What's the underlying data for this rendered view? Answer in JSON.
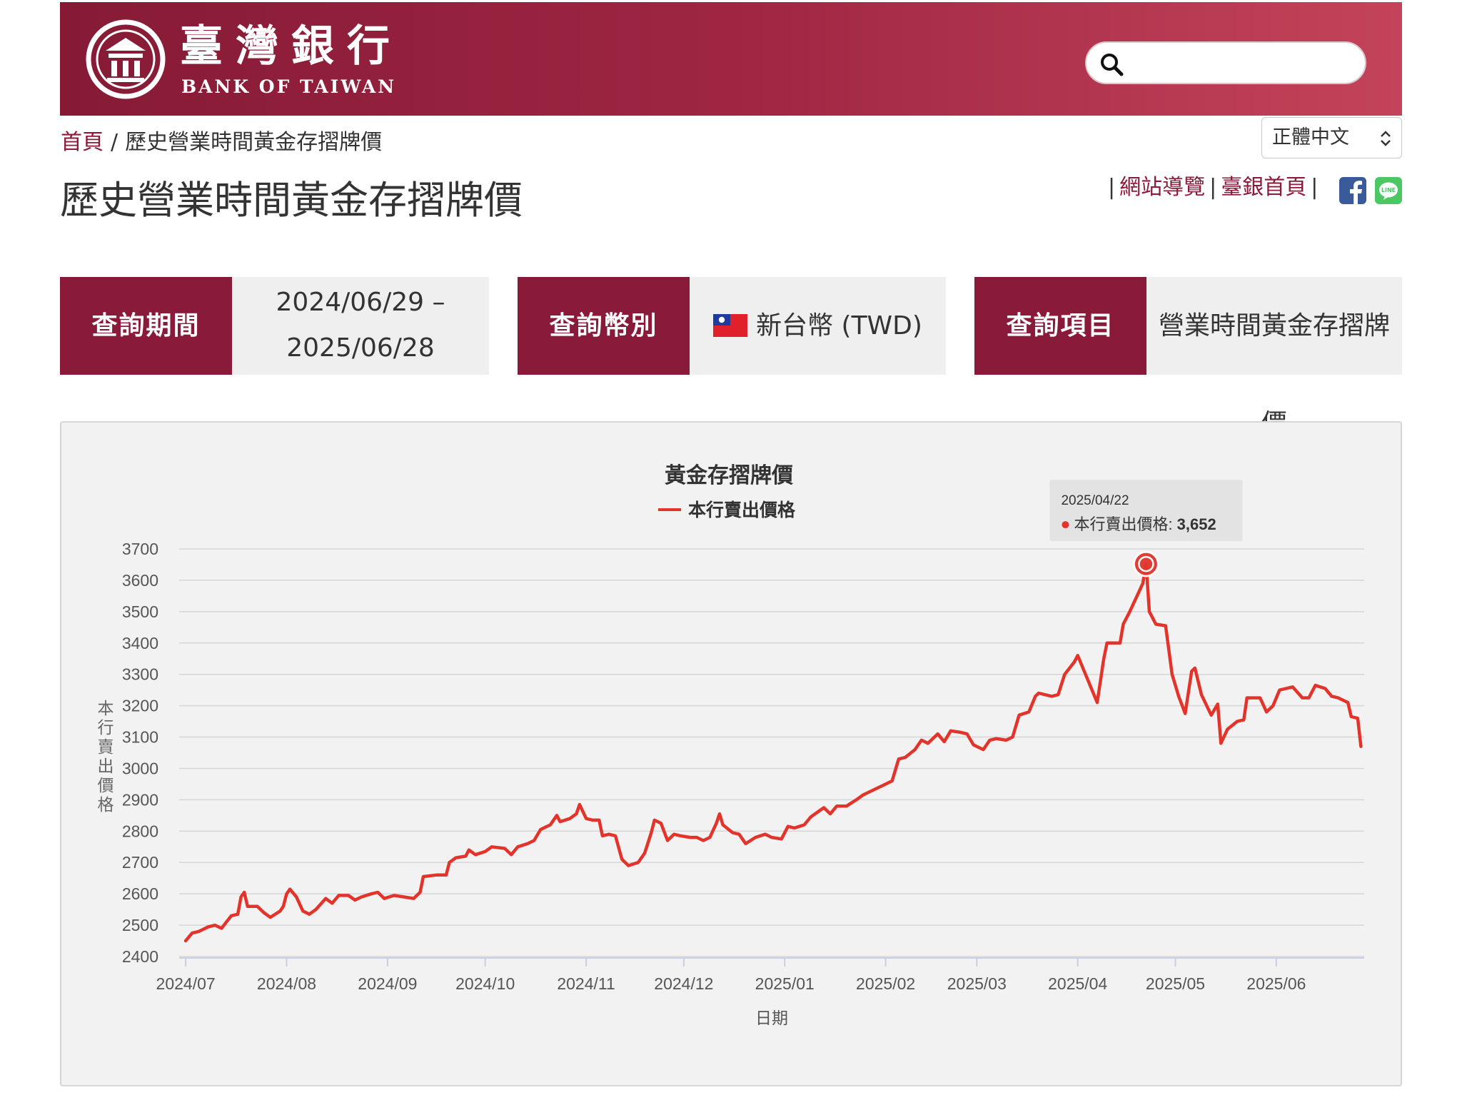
{
  "header": {
    "logo_cn": "臺灣銀行",
    "logo_en": "BANK OF TAIWAN",
    "search_placeholder": "",
    "colors": {
      "brand": "#8a1a39",
      "brand_light": "#c4435a"
    }
  },
  "breadcrumb": {
    "home": "首頁",
    "separator": "/",
    "current": "歷史營業時間黃金存摺牌價"
  },
  "page_title": "歷史營業時間黃金存摺牌價",
  "language": {
    "selected": "正體中文"
  },
  "top_links": {
    "sitemap": "網站導覽",
    "home": "臺銀首頁",
    "separator": "|"
  },
  "query": {
    "period": {
      "label": "查詢期間",
      "line1": "2024/06/29 –",
      "line2": "2025/06/28"
    },
    "currency": {
      "label": "查詢幣別",
      "value": "新台幣 (TWD)"
    },
    "item": {
      "label": "查詢項目",
      "value": "營業時間黃金存摺牌價"
    }
  },
  "icons": [
    "search-icon",
    "chevron-updown-icon",
    "facebook-icon",
    "line-icon",
    "taiwan-flag-icon",
    "bank-logo-icon"
  ],
  "chart_data": {
    "type": "line",
    "title": "黃金存摺牌價",
    "xlabel": "日期",
    "ylabel": "本行賣出價格",
    "ylim": [
      2400,
      3700
    ],
    "yticks": [
      2400,
      2500,
      2600,
      2700,
      2800,
      2900,
      3000,
      3100,
      3200,
      3300,
      3400,
      3500,
      3600,
      3700
    ],
    "xlim": [
      "2024-06-29",
      "2025-06-28"
    ],
    "xticks": [
      {
        "date": "2024-07-01",
        "label": "2024/07"
      },
      {
        "date": "2024-08-01",
        "label": "2024/08"
      },
      {
        "date": "2024-09-01",
        "label": "2024/09"
      },
      {
        "date": "2024-10-01",
        "label": "2024/10"
      },
      {
        "date": "2024-11-01",
        "label": "2024/11"
      },
      {
        "date": "2024-12-01",
        "label": "2024/12"
      },
      {
        "date": "2025-01-01",
        "label": "2025/01"
      },
      {
        "date": "2025-02-01",
        "label": "2025/02"
      },
      {
        "date": "2025-03-01",
        "label": "2025/03"
      },
      {
        "date": "2025-04-01",
        "label": "2025/04"
      },
      {
        "date": "2025-05-01",
        "label": "2025/05"
      },
      {
        "date": "2025-06-01",
        "label": "2025/06"
      }
    ],
    "grid": true,
    "legend": "top-center",
    "series": [
      {
        "name": "本行賣出價格",
        "color": "#e2342b",
        "points": [
          [
            "2024-07-01",
            2450
          ],
          [
            "2024-07-03",
            2475
          ],
          [
            "2024-07-05",
            2480
          ],
          [
            "2024-07-08",
            2495
          ],
          [
            "2024-07-10",
            2500
          ],
          [
            "2024-07-12",
            2490
          ],
          [
            "2024-07-15",
            2530
          ],
          [
            "2024-07-17",
            2535
          ],
          [
            "2024-07-18",
            2590
          ],
          [
            "2024-07-19",
            2605
          ],
          [
            "2024-07-20",
            2560
          ],
          [
            "2024-07-23",
            2560
          ],
          [
            "2024-07-25",
            2540
          ],
          [
            "2024-07-27",
            2525
          ],
          [
            "2024-07-30",
            2545
          ],
          [
            "2024-07-31",
            2560
          ],
          [
            "2024-08-01",
            2600
          ],
          [
            "2024-08-02",
            2615
          ],
          [
            "2024-08-04",
            2590
          ],
          [
            "2024-08-06",
            2545
          ],
          [
            "2024-08-08",
            2535
          ],
          [
            "2024-08-10",
            2550
          ],
          [
            "2024-08-13",
            2585
          ],
          [
            "2024-08-15",
            2570
          ],
          [
            "2024-08-17",
            2595
          ],
          [
            "2024-08-20",
            2595
          ],
          [
            "2024-08-22",
            2580
          ],
          [
            "2024-08-24",
            2590
          ],
          [
            "2024-08-27",
            2600
          ],
          [
            "2024-08-29",
            2605
          ],
          [
            "2024-08-31",
            2585
          ],
          [
            "2024-09-03",
            2595
          ],
          [
            "2024-09-06",
            2590
          ],
          [
            "2024-09-09",
            2585
          ],
          [
            "2024-09-11",
            2605
          ],
          [
            "2024-09-12",
            2655
          ],
          [
            "2024-09-16",
            2660
          ],
          [
            "2024-09-19",
            2660
          ],
          [
            "2024-09-20",
            2700
          ],
          [
            "2024-09-22",
            2715
          ],
          [
            "2024-09-25",
            2720
          ],
          [
            "2024-09-26",
            2740
          ],
          [
            "2024-09-28",
            2725
          ],
          [
            "2024-10-01",
            2735
          ],
          [
            "2024-10-03",
            2750
          ],
          [
            "2024-10-07",
            2745
          ],
          [
            "2024-10-09",
            2725
          ],
          [
            "2024-10-11",
            2750
          ],
          [
            "2024-10-14",
            2760
          ],
          [
            "2024-10-16",
            2770
          ],
          [
            "2024-10-18",
            2805
          ],
          [
            "2024-10-21",
            2820
          ],
          [
            "2024-10-23",
            2850
          ],
          [
            "2024-10-24",
            2830
          ],
          [
            "2024-10-27",
            2840
          ],
          [
            "2024-10-29",
            2855
          ],
          [
            "2024-10-30",
            2885
          ],
          [
            "2024-11-01",
            2840
          ],
          [
            "2024-11-03",
            2835
          ],
          [
            "2024-11-05",
            2835
          ],
          [
            "2024-11-06",
            2785
          ],
          [
            "2024-11-08",
            2790
          ],
          [
            "2024-11-10",
            2785
          ],
          [
            "2024-11-12",
            2710
          ],
          [
            "2024-11-14",
            2690
          ],
          [
            "2024-11-17",
            2700
          ],
          [
            "2024-11-19",
            2730
          ],
          [
            "2024-11-21",
            2795
          ],
          [
            "2024-11-22",
            2835
          ],
          [
            "2024-11-24",
            2825
          ],
          [
            "2024-11-26",
            2770
          ],
          [
            "2024-11-28",
            2790
          ],
          [
            "2024-11-30",
            2785
          ],
          [
            "2024-12-03",
            2780
          ],
          [
            "2024-12-05",
            2780
          ],
          [
            "2024-12-07",
            2770
          ],
          [
            "2024-12-09",
            2780
          ],
          [
            "2024-12-11",
            2825
          ],
          [
            "2024-12-12",
            2855
          ],
          [
            "2024-12-13",
            2820
          ],
          [
            "2024-12-16",
            2795
          ],
          [
            "2024-12-18",
            2790
          ],
          [
            "2024-12-20",
            2760
          ],
          [
            "2024-12-23",
            2780
          ],
          [
            "2024-12-26",
            2790
          ],
          [
            "2024-12-28",
            2780
          ],
          [
            "2024-12-31",
            2775
          ],
          [
            "2025-01-02",
            2815
          ],
          [
            "2025-01-04",
            2810
          ],
          [
            "2025-01-07",
            2820
          ],
          [
            "2025-01-09",
            2845
          ],
          [
            "2025-01-11",
            2860
          ],
          [
            "2025-01-13",
            2875
          ],
          [
            "2025-01-15",
            2855
          ],
          [
            "2025-01-17",
            2880
          ],
          [
            "2025-01-20",
            2880
          ],
          [
            "2025-01-23",
            2900
          ],
          [
            "2025-01-25",
            2915
          ],
          [
            "2025-01-27",
            2925
          ],
          [
            "2025-01-31",
            2945
          ],
          [
            "2025-02-03",
            2960
          ],
          [
            "2025-02-05",
            3030
          ],
          [
            "2025-02-07",
            3035
          ],
          [
            "2025-02-10",
            3060
          ],
          [
            "2025-02-12",
            3090
          ],
          [
            "2025-02-14",
            3080
          ],
          [
            "2025-02-17",
            3110
          ],
          [
            "2025-02-19",
            3085
          ],
          [
            "2025-02-21",
            3120
          ],
          [
            "2025-02-24",
            3115
          ],
          [
            "2025-02-26",
            3110
          ],
          [
            "2025-02-28",
            3075
          ],
          [
            "2025-03-03",
            3060
          ],
          [
            "2025-03-05",
            3090
          ],
          [
            "2025-03-07",
            3095
          ],
          [
            "2025-03-10",
            3090
          ],
          [
            "2025-03-12",
            3100
          ],
          [
            "2025-03-14",
            3170
          ],
          [
            "2025-03-17",
            3180
          ],
          [
            "2025-03-19",
            3230
          ],
          [
            "2025-03-20",
            3240
          ],
          [
            "2025-03-24",
            3230
          ],
          [
            "2025-03-26",
            3235
          ],
          [
            "2025-03-28",
            3300
          ],
          [
            "2025-03-31",
            3340
          ],
          [
            "2025-04-01",
            3360
          ],
          [
            "2025-04-03",
            3310
          ],
          [
            "2025-04-07",
            3210
          ],
          [
            "2025-04-09",
            3350
          ],
          [
            "2025-04-10",
            3400
          ],
          [
            "2025-04-14",
            3400
          ],
          [
            "2025-04-15",
            3460
          ],
          [
            "2025-04-17",
            3500
          ],
          [
            "2025-04-21",
            3590
          ],
          [
            "2025-04-22",
            3652
          ],
          [
            "2025-04-23",
            3500
          ],
          [
            "2025-04-24",
            3480
          ],
          [
            "2025-04-25",
            3460
          ],
          [
            "2025-04-28",
            3455
          ],
          [
            "2025-04-30",
            3300
          ],
          [
            "2025-05-02",
            3230
          ],
          [
            "2025-05-04",
            3175
          ],
          [
            "2025-05-06",
            3310
          ],
          [
            "2025-05-07",
            3320
          ],
          [
            "2025-05-09",
            3235
          ],
          [
            "2025-05-12",
            3170
          ],
          [
            "2025-05-14",
            3205
          ],
          [
            "2025-05-15",
            3080
          ],
          [
            "2025-05-17",
            3125
          ],
          [
            "2025-05-20",
            3150
          ],
          [
            "2025-05-22",
            3155
          ],
          [
            "2025-05-23",
            3225
          ],
          [
            "2025-05-27",
            3225
          ],
          [
            "2025-05-29",
            3180
          ],
          [
            "2025-05-31",
            3200
          ],
          [
            "2025-06-02",
            3250
          ],
          [
            "2025-06-04",
            3255
          ],
          [
            "2025-06-06",
            3260
          ],
          [
            "2025-06-09",
            3225
          ],
          [
            "2025-06-11",
            3225
          ],
          [
            "2025-06-13",
            3265
          ],
          [
            "2025-06-16",
            3255
          ],
          [
            "2025-06-18",
            3230
          ],
          [
            "2025-06-20",
            3225
          ],
          [
            "2025-06-23",
            3210
          ],
          [
            "2025-06-24",
            3165
          ],
          [
            "2025-06-26",
            3160
          ],
          [
            "2025-06-27",
            3070
          ]
        ]
      }
    ],
    "tooltip": {
      "date": "2025/04/22",
      "series": "本行賣出價格",
      "value": 3652,
      "value_label": "3,652"
    }
  }
}
